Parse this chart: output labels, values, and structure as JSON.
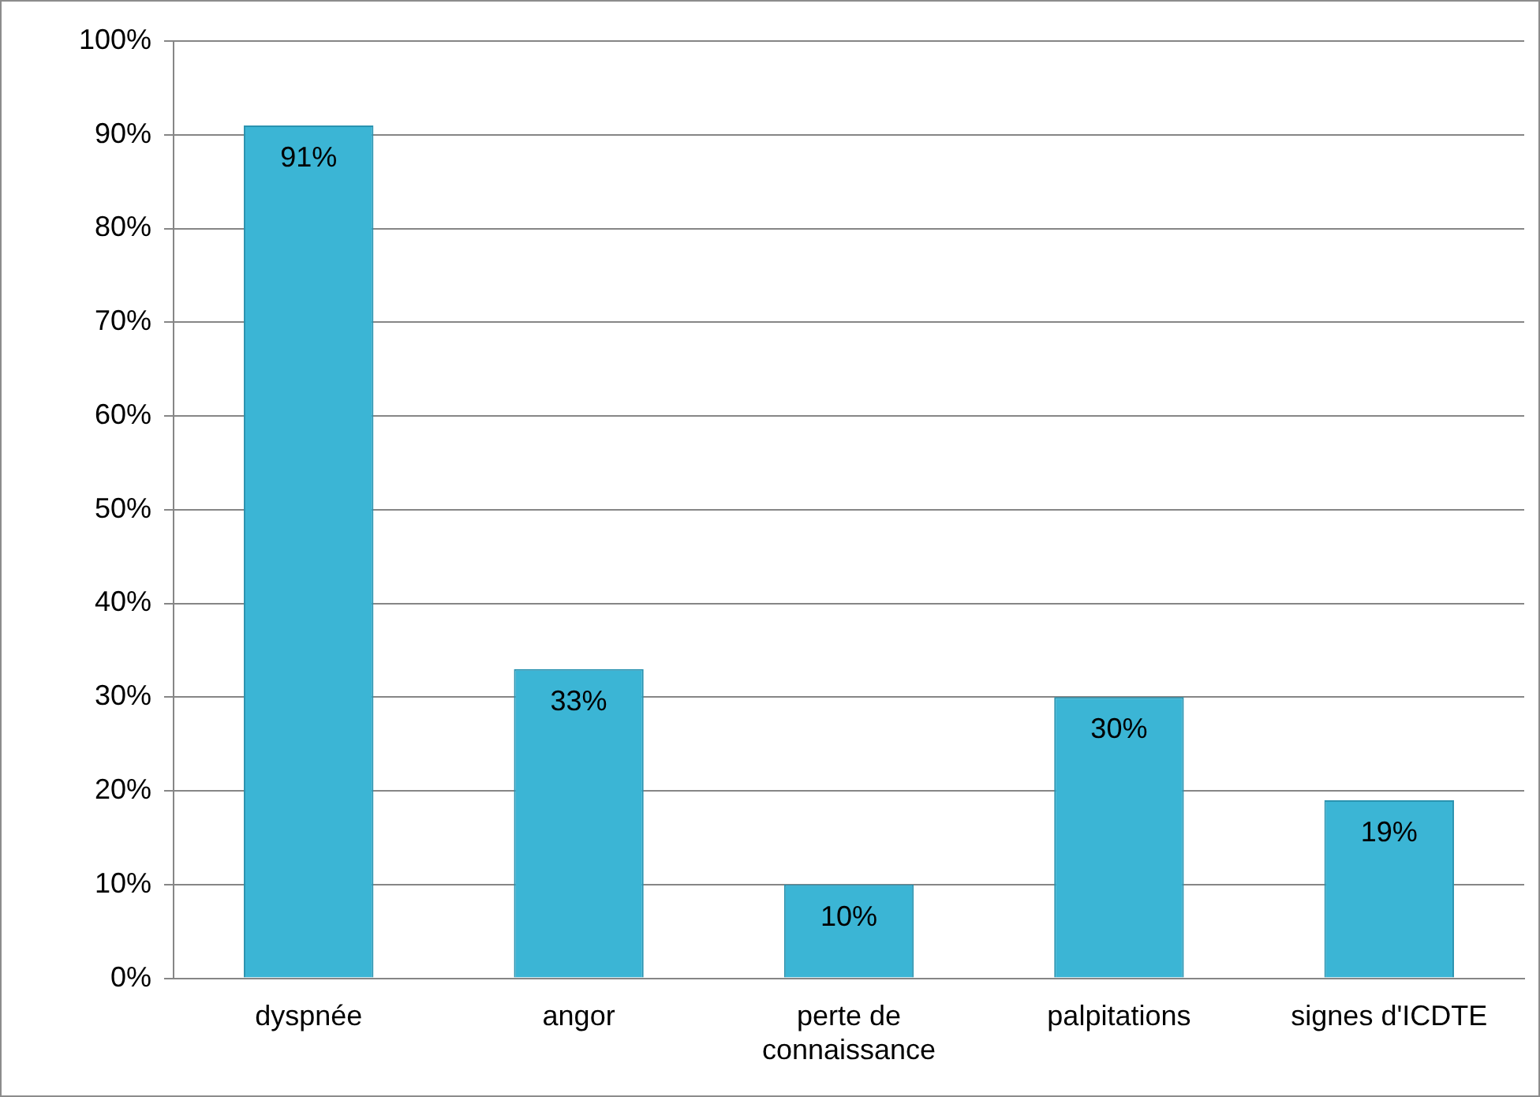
{
  "chart_data": {
    "type": "bar",
    "categories": [
      "dyspnée",
      "angor",
      "perte de connaissance",
      "palpitations",
      "signes d'ICDTE"
    ],
    "values": [
      91,
      33,
      10,
      30,
      19
    ],
    "value_labels": [
      "91%",
      "33%",
      "10%",
      "30%",
      "19%"
    ],
    "color": "#3bb5d5",
    "ylim": [
      0,
      100
    ],
    "yticks": [
      {
        "value": 0,
        "label": "0%"
      },
      {
        "value": 10,
        "label": "10%"
      },
      {
        "value": 20,
        "label": "20%"
      },
      {
        "value": 30,
        "label": "30%"
      },
      {
        "value": 40,
        "label": "40%"
      },
      {
        "value": 50,
        "label": "50%"
      },
      {
        "value": 60,
        "label": "60%"
      },
      {
        "value": 70,
        "label": "70%"
      },
      {
        "value": 80,
        "label": "80%"
      },
      {
        "value": 90,
        "label": "90%"
      },
      {
        "value": 100,
        "label": "100%"
      }
    ],
    "grid": "y",
    "legend": false
  }
}
